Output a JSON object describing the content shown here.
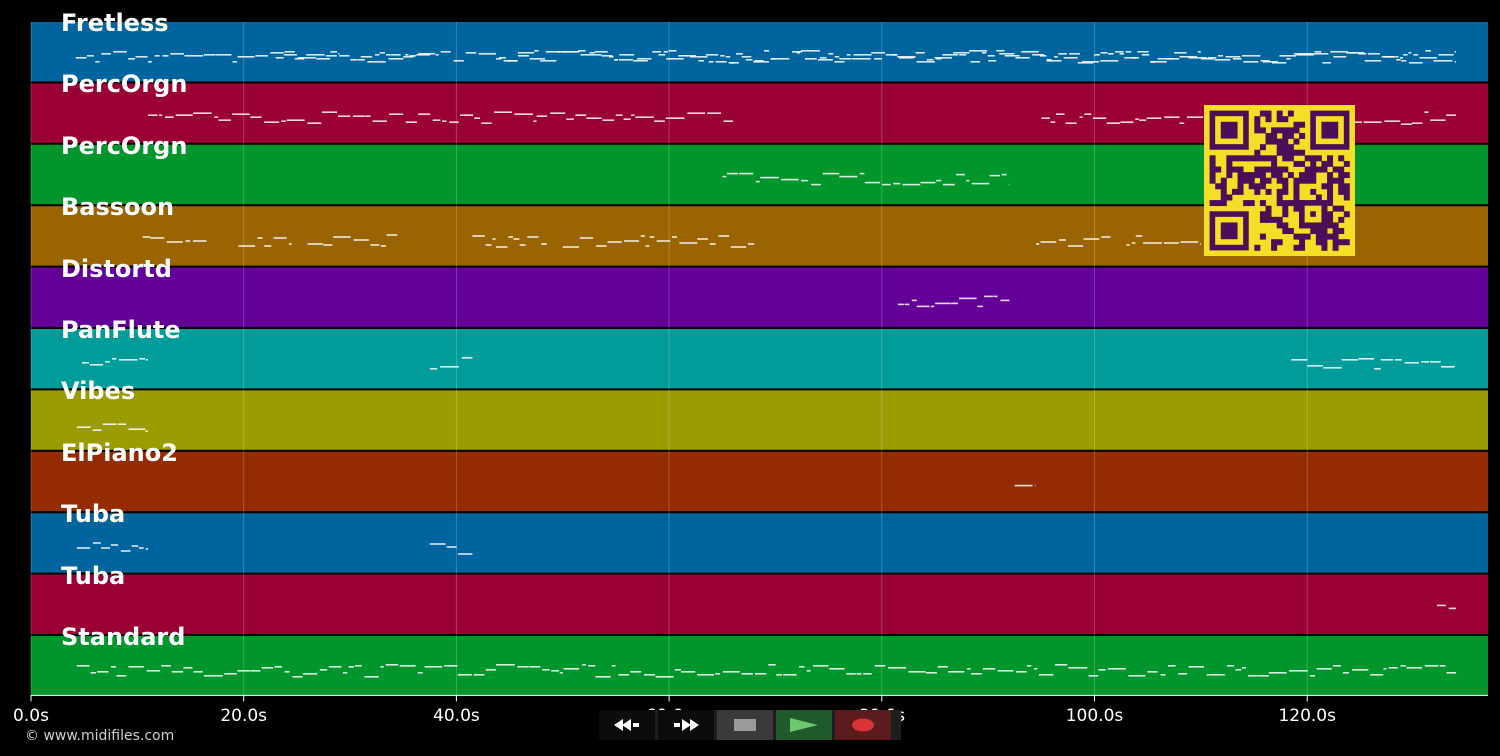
{
  "roll": {
    "duration_s": 137,
    "grid_visible": true,
    "time_ticks": [
      {
        "value": 0,
        "label": "0.0s"
      },
      {
        "value": 20,
        "label": "20.0s"
      },
      {
        "value": 40,
        "label": "40.0s"
      },
      {
        "value": 60,
        "label": "60.0s"
      },
      {
        "value": 80,
        "label": "80.0s"
      },
      {
        "value": 100,
        "label": "100.0s"
      },
      {
        "value": 120,
        "label": "120.0s"
      }
    ],
    "tracks": [
      {
        "name": "Fretless",
        "color": "#00659e",
        "segments": [
          [
            4.2,
            134
          ],
          [
            23,
            29
          ],
          [
            31,
            38
          ],
          [
            44,
            58
          ],
          [
            59,
            70
          ],
          [
            72,
            80
          ],
          [
            81,
            100
          ],
          [
            100,
            110
          ],
          [
            110,
            134
          ]
        ]
      },
      {
        "name": "PercOrgn",
        "color": "#9b0034",
        "segments": [
          [
            11,
            66
          ],
          [
            95,
            108
          ],
          [
            108,
            112
          ],
          [
            123,
            134
          ]
        ]
      },
      {
        "name": "PercOrgn",
        "color": "#00962c",
        "segments": [
          [
            65,
            92
          ]
        ]
      },
      {
        "name": "Bassoon",
        "color": "#9a6400",
        "segments": [
          [
            10.5,
            16.5
          ],
          [
            19.5,
            24.5
          ],
          [
            26,
            34.5
          ],
          [
            41.5,
            48.5
          ],
          [
            50,
            68
          ],
          [
            94.5,
            101.5
          ],
          [
            103,
            110
          ]
        ]
      },
      {
        "name": "Distortd",
        "color": "#620097",
        "segments": [
          [
            81.5,
            92
          ]
        ]
      },
      {
        "name": "PanFlute",
        "color": "#009c9a",
        "segments": [
          [
            4.8,
            11
          ],
          [
            37.5,
            41.5
          ],
          [
            118.5,
            134
          ]
        ]
      },
      {
        "name": "Vibes",
        "color": "#9a9c00",
        "segments": [
          [
            4.3,
            11
          ]
        ]
      },
      {
        "name": "ElPiano2",
        "color": "#952b00",
        "segments": [
          [
            92.5,
            94.5
          ]
        ]
      },
      {
        "name": "Tuba",
        "color": "#00659e",
        "segments": [
          [
            4.3,
            11
          ],
          [
            37.5,
            41.5
          ]
        ]
      },
      {
        "name": "Tuba",
        "color": "#9b0034",
        "segments": [
          [
            132.2,
            134
          ]
        ]
      },
      {
        "name": "Standard",
        "color": "#00962c",
        "segments": [
          [
            4.3,
            134
          ]
        ]
      }
    ]
  },
  "copyright": "© www.midifiles.com",
  "controls": {
    "rewind_icon": "rewind-icon",
    "ffwd_icon": "fast-forward-icon",
    "stop_icon": "stop-icon",
    "play_icon": "play-icon",
    "record_icon": "record-icon"
  },
  "qr": {
    "fg": "#4b0f5a",
    "bg": "#f7de26"
  }
}
